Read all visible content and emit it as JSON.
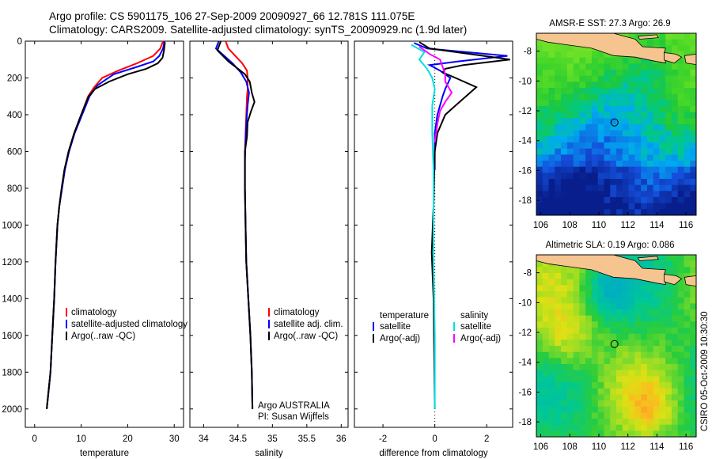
{
  "header": {
    "line1": "Argo profile: CS 5901175_106 27-Sep-2009 20090927_66 12.781S 111.075E",
    "line2": "Climatology: CARS2009. Satellite-adjusted climatology: synTS_20090929.nc (1.9d later)"
  },
  "side_label": "CSIRO 05-Oct-2009 10:30:30",
  "chart_data": [
    {
      "type": "line",
      "name": "temperature",
      "xlabel": "temperature",
      "ylabel": "",
      "xlim": [
        -2,
        32
      ],
      "ylim": [
        2100,
        0
      ],
      "xticks": [
        0,
        10,
        20,
        30
      ],
      "yticks": [
        0,
        200,
        400,
        600,
        800,
        1000,
        1200,
        1400,
        1600,
        1800,
        2000
      ],
      "legend": [
        "climatology",
        "satellite-adjusted climatology",
        "Argo(..raw -QC)"
      ],
      "series": [
        {
          "name": "climatology",
          "color": "#ff0000",
          "points": [
            [
              27.6,
              0
            ],
            [
              27.0,
              40
            ],
            [
              25.5,
              80
            ],
            [
              22,
              120
            ],
            [
              18,
              160
            ],
            [
              14.5,
              200
            ],
            [
              12.8,
              250
            ],
            [
              11.5,
              300
            ],
            [
              10,
              400
            ],
            [
              8.5,
              500
            ],
            [
              7.3,
              600
            ],
            [
              6.4,
              700
            ],
            [
              5.8,
              800
            ],
            [
              5.3,
              900
            ],
            [
              4.9,
              1000
            ],
            [
              4.5,
              1200
            ],
            [
              4.2,
              1400
            ],
            [
              3.8,
              1600
            ],
            [
              3.4,
              1800
            ],
            [
              2.6,
              2000
            ]
          ]
        },
        {
          "name": "satellite-adjusted climatology",
          "color": "#0000ff",
          "points": [
            [
              27.9,
              0
            ],
            [
              27.6,
              40
            ],
            [
              26.8,
              80
            ],
            [
              25.5,
              110
            ],
            [
              22,
              140
            ],
            [
              17,
              180
            ],
            [
              13.5,
              240
            ],
            [
              11.8,
              300
            ],
            [
              10.2,
              400
            ],
            [
              8.6,
              500
            ],
            [
              7.4,
              600
            ],
            [
              6.5,
              700
            ],
            [
              5.9,
              800
            ],
            [
              5.3,
              900
            ],
            [
              4.9,
              1000
            ],
            [
              4.5,
              1200
            ],
            [
              4.2,
              1400
            ],
            [
              3.8,
              1600
            ],
            [
              3.4,
              1800
            ],
            [
              2.6,
              2000
            ]
          ]
        },
        {
          "name": "Argo(..raw -QC)",
          "color": "#000000",
          "points": [
            [
              28.0,
              5
            ],
            [
              27.8,
              50
            ],
            [
              27.5,
              90
            ],
            [
              26.5,
              120
            ],
            [
              24,
              150
            ],
            [
              20,
              180
            ],
            [
              16,
              220
            ],
            [
              13,
              260
            ],
            [
              11.6,
              300
            ],
            [
              10,
              400
            ],
            [
              8.5,
              500
            ],
            [
              7.3,
              600
            ],
            [
              6.4,
              700
            ],
            [
              5.8,
              800
            ],
            [
              5.3,
              900
            ],
            [
              4.9,
              1000
            ],
            [
              4.5,
              1200
            ],
            [
              4.2,
              1400
            ],
            [
              3.8,
              1600
            ],
            [
              3.4,
              1800
            ],
            [
              2.6,
              2000
            ]
          ]
        }
      ]
    },
    {
      "type": "line",
      "name": "salinity",
      "xlabel": "salinity",
      "xlim": [
        33.8,
        36.1
      ],
      "ylim": [
        2100,
        0
      ],
      "xticks": [
        34,
        34.5,
        35,
        35.5,
        36
      ],
      "legend": [
        "climatology",
        "satellite adj. clim.",
        "Argo(..raw -QC)"
      ],
      "annotation": [
        "Argo AUSTRALIA",
        "PI: Susan Wijffels"
      ],
      "series": [
        {
          "name": "climatology",
          "color": "#ff0000",
          "points": [
            [
              34.32,
              0
            ],
            [
              34.36,
              40
            ],
            [
              34.46,
              80
            ],
            [
              34.56,
              120
            ],
            [
              34.63,
              160
            ],
            [
              34.64,
              200
            ],
            [
              34.64,
              260
            ],
            [
              34.63,
              300
            ],
            [
              34.62,
              400
            ],
            [
              34.61,
              500
            ],
            [
              34.6,
              600
            ],
            [
              34.6,
              800
            ],
            [
              34.61,
              1000
            ],
            [
              34.62,
              1200
            ],
            [
              34.65,
              1400
            ],
            [
              34.68,
              1600
            ],
            [
              34.7,
              1800
            ],
            [
              34.71,
              2000
            ]
          ]
        },
        {
          "name": "satellite adj. clim.",
          "color": "#0000ff",
          "points": [
            [
              34.22,
              0
            ],
            [
              34.18,
              40
            ],
            [
              34.3,
              80
            ],
            [
              34.42,
              120
            ],
            [
              34.54,
              170
            ],
            [
              34.62,
              220
            ],
            [
              34.66,
              280
            ],
            [
              34.64,
              350
            ],
            [
              34.62,
              450
            ],
            [
              34.61,
              550
            ],
            [
              34.6,
              650
            ],
            [
              34.6,
              800
            ],
            [
              34.61,
              1000
            ],
            [
              34.62,
              1200
            ],
            [
              34.65,
              1400
            ],
            [
              34.68,
              1600
            ],
            [
              34.7,
              1800
            ],
            [
              34.71,
              2000
            ]
          ]
        },
        {
          "name": "Argo(..raw -QC)",
          "color": "#000000",
          "points": [
            [
              34.25,
              0
            ],
            [
              34.2,
              50
            ],
            [
              34.28,
              80
            ],
            [
              34.36,
              110
            ],
            [
              34.5,
              150
            ],
            [
              34.6,
              180
            ],
            [
              34.67,
              220
            ],
            [
              34.7,
              280
            ],
            [
              34.74,
              330
            ],
            [
              34.69,
              380
            ],
            [
              34.64,
              440
            ],
            [
              34.63,
              520
            ],
            [
              34.6,
              600
            ],
            [
              34.6,
              800
            ],
            [
              34.61,
              1000
            ],
            [
              34.62,
              1200
            ],
            [
              34.65,
              1400
            ],
            [
              34.68,
              1600
            ],
            [
              34.7,
              1800
            ],
            [
              34.71,
              2000
            ]
          ]
        }
      ]
    },
    {
      "type": "line",
      "name": "difference",
      "xlabel": "difference from climatology",
      "xlim": [
        -3.1,
        3.0
      ],
      "ylim": [
        2100,
        0
      ],
      "xticks": [
        -2,
        0,
        2
      ],
      "legend_headers": [
        "temperature",
        "salinity"
      ],
      "legend": [
        "satellite",
        "Argo(-adj)",
        "satellite",
        "Argo(-adj)"
      ],
      "series": [
        {
          "name": "temperature satellite",
          "color": "#0000ff",
          "points": [
            [
              -0.8,
              10
            ],
            [
              -0.3,
              40
            ],
            [
              2.8,
              80
            ],
            [
              0.9,
              110
            ],
            [
              -0.2,
              130
            ],
            [
              0.2,
              160
            ],
            [
              0.6,
              200
            ],
            [
              0.4,
              260
            ],
            [
              0.3,
              300
            ],
            [
              0.1,
              400
            ],
            [
              0,
              500
            ],
            [
              0,
              700
            ]
          ]
        },
        {
          "name": "temperature Argo(-adj)",
          "color": "#000000",
          "points": [
            [
              -0.6,
              5
            ],
            [
              -0.2,
              40
            ],
            [
              2.9,
              100
            ],
            [
              1.1,
              130
            ],
            [
              0.4,
              150
            ],
            [
              0.3,
              170
            ],
            [
              0.8,
              200
            ],
            [
              1.6,
              250
            ],
            [
              1.2,
              300
            ],
            [
              0.8,
              350
            ],
            [
              0.4,
              400
            ],
            [
              0.1,
              500
            ],
            [
              0,
              600
            ],
            [
              -0.05,
              900
            ],
            [
              -0.12,
              1150
            ],
            [
              -0.05,
              1400
            ],
            [
              0,
              2000
            ]
          ]
        },
        {
          "name": "salinity satellite",
          "color": "#00e0e0",
          "points": [
            [
              -0.9,
              20
            ],
            [
              -0.4,
              60
            ],
            [
              -0.6,
              100
            ],
            [
              -0.3,
              150
            ],
            [
              -0.1,
              200
            ],
            [
              0,
              260
            ],
            [
              -0.1,
              350
            ],
            [
              -0.1,
              500
            ],
            [
              -0.05,
              700
            ],
            [
              -0.05,
              900
            ],
            [
              -0.05,
              1200
            ],
            [
              0,
              1600
            ],
            [
              0,
              2000
            ]
          ]
        },
        {
          "name": "salinity Argo(-adj)",
          "color": "#ff00ff",
          "points": [
            [
              -0.6,
              30
            ],
            [
              -0.2,
              70
            ],
            [
              0.2,
              100
            ],
            [
              0.3,
              140
            ],
            [
              0.4,
              180
            ],
            [
              0.4,
              220
            ],
            [
              0.65,
              280
            ],
            [
              0.4,
              330
            ],
            [
              0.2,
              380
            ],
            [
              0.1,
              450
            ],
            [
              0,
              550
            ]
          ]
        }
      ]
    },
    {
      "type": "heatmap",
      "name": "sst-map",
      "title": "AMSR-E SST: 27.3 Argo: 26.9",
      "xticks": [
        106,
        108,
        110,
        112,
        114,
        116
      ],
      "yticks": [
        -8,
        -10,
        -12,
        -14,
        -16,
        -18
      ],
      "xlim": [
        105.7,
        116.7
      ],
      "ylim": [
        -19.0,
        -6.8
      ],
      "float_position": [
        111.075,
        -12.781
      ]
    },
    {
      "type": "heatmap",
      "name": "sla-map",
      "title": "Altimetric SLA: 0.19 Argo: 0.086",
      "xticks": [
        106,
        108,
        110,
        112,
        114,
        116
      ],
      "yticks": [
        -8,
        -10,
        -12,
        -14,
        -16,
        -18
      ],
      "xlim": [
        105.7,
        116.7
      ],
      "ylim": [
        -19.0,
        -6.8
      ],
      "float_position": [
        111.075,
        -12.781
      ]
    }
  ]
}
